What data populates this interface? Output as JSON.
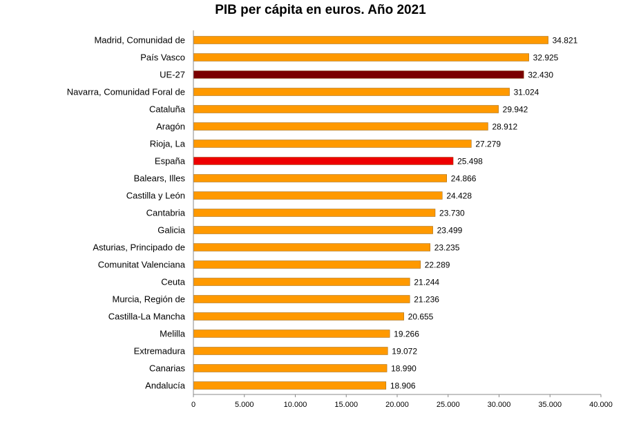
{
  "chart_data": {
    "type": "bar",
    "orientation": "horizontal",
    "title": "PIB per cápita en euros. Año 2021",
    "categories": [
      "Madrid, Comunidad de",
      "País Vasco",
      "UE-27",
      "Navarra, Comunidad Foral de",
      "Cataluña",
      "Aragón",
      "Rioja, La",
      "España",
      "Balears, Illes",
      "Castilla y León",
      "Cantabria",
      "Galicia",
      "Asturias, Principado de",
      "Comunitat Valenciana",
      "Ceuta",
      "Murcia, Región de",
      "Castilla-La Mancha",
      "Melilla",
      "Extremadura",
      "Canarias",
      "Andalucía"
    ],
    "values": [
      34821,
      32925,
      32430,
      31024,
      29942,
      28912,
      27279,
      25498,
      24866,
      24428,
      23730,
      23499,
      23235,
      22289,
      21244,
      21236,
      20655,
      19266,
      19072,
      18990,
      18906
    ],
    "value_labels": [
      "34.821",
      "32.925",
      "32.430",
      "31.024",
      "29.942",
      "28.912",
      "27.279",
      "25.498",
      "24.866",
      "24.428",
      "23.730",
      "23.499",
      "23.235",
      "22.289",
      "21.244",
      "21.236",
      "20.655",
      "19.266",
      "19.072",
      "18.990",
      "18.906"
    ],
    "bar_colors": [
      "#ff9900",
      "#ff9900",
      "#7a0000",
      "#ff9900",
      "#ff9900",
      "#ff9900",
      "#ff9900",
      "#ee0000",
      "#ff9900",
      "#ff9900",
      "#ff9900",
      "#ff9900",
      "#ff9900",
      "#ff9900",
      "#ff9900",
      "#ff9900",
      "#ff9900",
      "#ff9900",
      "#ff9900",
      "#ff9900",
      "#ff9900"
    ],
    "xlim": [
      0,
      40000
    ],
    "xticks": [
      0,
      5000,
      10000,
      15000,
      20000,
      25000,
      30000,
      35000,
      40000
    ],
    "xtick_labels": [
      "0",
      "5.000",
      "10.000",
      "15.000",
      "20.000",
      "25.000",
      "30.000",
      "35.000",
      "40.000"
    ],
    "grid": false,
    "legend": "none"
  }
}
